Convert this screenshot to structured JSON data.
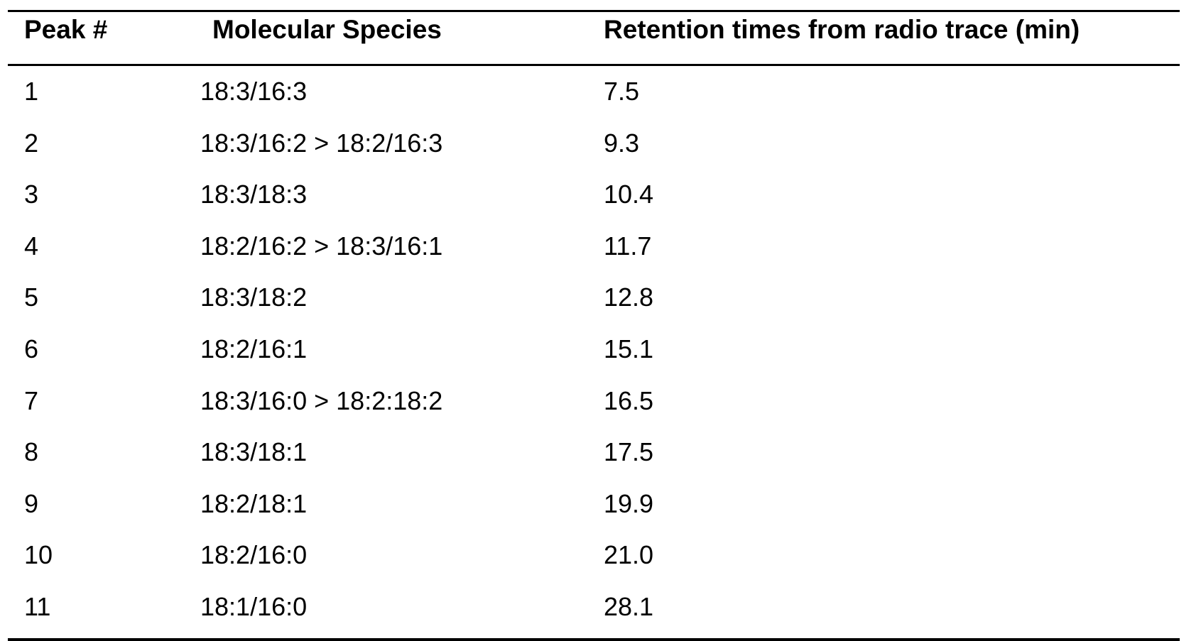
{
  "table": {
    "headers": {
      "peak": "Peak #",
      "species": "Molecular Species",
      "retention": "Retention times from radio trace (min)"
    },
    "rows": [
      {
        "peak": "1",
        "species": "18:3/16:3",
        "retention": "7.5"
      },
      {
        "peak": "2",
        "species": "18:3/16:2 > 18:2/16:3",
        "retention": "9.3"
      },
      {
        "peak": "3",
        "species": "18:3/18:3",
        "retention": "10.4"
      },
      {
        "peak": "4",
        "species": "18:2/16:2 > 18:3/16:1",
        "retention": "11.7"
      },
      {
        "peak": "5",
        "species": "18:3/18:2",
        "retention": "12.8"
      },
      {
        "peak": "6",
        "species": "18:2/16:1",
        "retention": "15.1"
      },
      {
        "peak": "7",
        "species": "18:3/16:0 > 18:2:18:2",
        "retention": "16.5"
      },
      {
        "peak": "8",
        "species": "18:3/18:1",
        "retention": "17.5"
      },
      {
        "peak": "9",
        "species": "18:2/18:1",
        "retention": "19.9"
      },
      {
        "peak": "10",
        "species": "18:2/16:0",
        "retention": "21.0"
      },
      {
        "peak": "11",
        "species": "18:1/16:0",
        "retention": "28.1"
      }
    ]
  }
}
